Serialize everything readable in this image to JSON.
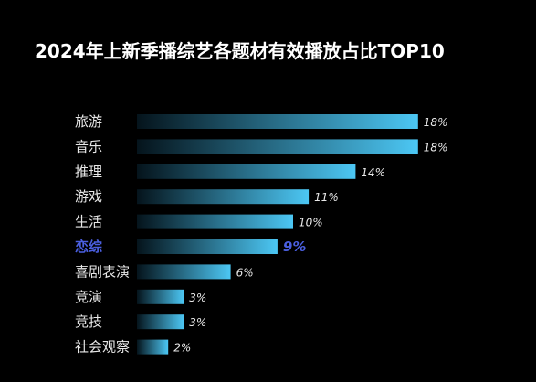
{
  "chart_data": {
    "type": "bar",
    "orientation": "horizontal",
    "title": "2024年上新季播综艺各题材有效播放占比TOP10",
    "categories": [
      "旅游",
      "音乐",
      "推理",
      "游戏",
      "生活",
      "恋综",
      "喜剧表演",
      "竞演",
      "竞技",
      "社会观察"
    ],
    "values": [
      18,
      18,
      14,
      11,
      10,
      9,
      6,
      3,
      3,
      2
    ],
    "value_labels": [
      "18%",
      "18%",
      "14%",
      "11%",
      "10%",
      "9%",
      "6%",
      "3%",
      "3%",
      "2%"
    ],
    "unit": "%",
    "highlight_category": "恋综",
    "grid": false,
    "legend": "none",
    "colors": {
      "background": "#000000",
      "bar_start": "#05141c",
      "bar_end": "#4cc7f4",
      "text": "#e8e8e8",
      "highlight": "#4a5fe0"
    }
  }
}
